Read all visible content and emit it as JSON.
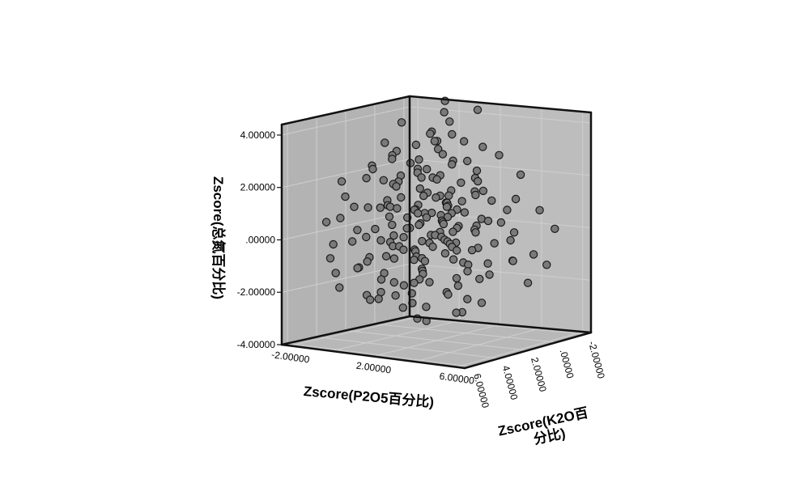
{
  "chart_data": {
    "type": "scatter",
    "subtype": "3d",
    "title": "",
    "z_axis": {
      "label": "Zscore(总氮百分比)",
      "ticks": [
        "4.00000",
        "2.00000",
        ".00000",
        "-2.00000",
        "-4.00000"
      ],
      "range": [
        -4,
        4.4
      ]
    },
    "x_axis": {
      "label": "Zscore(P2O5百分比)",
      "ticks": [
        "-2.00000",
        "2.00000",
        "6.00000"
      ],
      "range": [
        -2.4,
        6.4
      ]
    },
    "y_axis": {
      "label_lines": [
        "Zscore(K2O百",
        "分比)"
      ],
      "ticks": [
        "-2.00000",
        ".00000",
        "2.00000",
        "4.00000",
        "6.00000"
      ],
      "range": [
        -2.4,
        6.4
      ]
    },
    "grid": true,
    "legend": "none",
    "point_color": "#7a7a7a",
    "point_edge_color": "#1a1a1a",
    "wall_color": "#b3b3b3",
    "floor_color": "#b8b8b8",
    "points_zxy": [
      [
        4.6,
        0.3,
        -1.0
      ],
      [
        4.2,
        0.4,
        -0.8
      ],
      [
        3.9,
        0.8,
        -0.6
      ],
      [
        4.3,
        1.6,
        -1.4
      ],
      [
        3.8,
        -1.1,
        0.0
      ],
      [
        3.6,
        0.5,
        0.2
      ],
      [
        3.5,
        1.2,
        -0.2
      ],
      [
        3.4,
        0.0,
        -0.4
      ],
      [
        3.3,
        0.9,
        0.4
      ],
      [
        3.2,
        1.5,
        -0.6
      ],
      [
        3.0,
        -0.4,
        0.0
      ],
      [
        3.0,
        2.2,
        -0.9
      ],
      [
        2.9,
        0.6,
        -0.1
      ],
      [
        2.8,
        1.1,
        0.3
      ],
      [
        2.6,
        -1.2,
        0.5
      ],
      [
        2.6,
        0.3,
        0.8
      ],
      [
        2.5,
        1.8,
        -0.4
      ],
      [
        2.4,
        0.9,
        -0.7
      ],
      [
        2.3,
        -0.6,
        0.1
      ],
      [
        2.2,
        2.4,
        -0.2
      ],
      [
        2.2,
        0.1,
        0.6
      ],
      [
        2.1,
        1.4,
        0.9
      ],
      [
        2.0,
        -0.3,
        -0.6
      ],
      [
        2.0,
        0.7,
        1.2
      ],
      [
        1.9,
        2.8,
        0.3
      ],
      [
        1.8,
        -1.0,
        0.2
      ],
      [
        1.8,
        1.9,
        -0.8
      ],
      [
        1.7,
        0.4,
        -0.3
      ],
      [
        1.6,
        3.0,
        0.8
      ],
      [
        1.6,
        -0.8,
        1.0
      ],
      [
        1.5,
        1.2,
        1.5
      ],
      [
        1.4,
        0.0,
        0.3
      ],
      [
        1.4,
        2.5,
        -0.5
      ],
      [
        1.3,
        -1.5,
        -0.2
      ],
      [
        1.3,
        1.6,
        0.6
      ],
      [
        1.2,
        0.6,
        -1.0
      ],
      [
        1.2,
        3.4,
        0.2
      ],
      [
        1.1,
        -0.5,
        0.9
      ],
      [
        1.0,
        2.0,
        1.3
      ],
      [
        1.0,
        0.2,
        -0.8
      ],
      [
        0.9,
        -1.3,
        0.7
      ],
      [
        0.9,
        1.1,
        0.0
      ],
      [
        0.8,
        3.8,
        -0.3
      ],
      [
        0.8,
        -0.2,
        1.6
      ],
      [
        0.7,
        2.3,
        0.5
      ],
      [
        0.7,
        0.8,
        -0.5
      ],
      [
        0.6,
        -1.7,
        0.1
      ],
      [
        0.6,
        1.5,
        1.0
      ],
      [
        0.5,
        0.3,
        0.4
      ],
      [
        0.5,
        4.2,
        0.7
      ],
      [
        0.4,
        -0.9,
        -0.6
      ],
      [
        0.4,
        2.7,
        -0.1
      ],
      [
        0.3,
        1.0,
        1.8
      ],
      [
        0.3,
        -0.4,
        0.6
      ],
      [
        0.2,
        3.2,
        1.1
      ],
      [
        0.2,
        0.5,
        -0.9
      ],
      [
        0.1,
        -1.9,
        -0.3
      ],
      [
        0.1,
        1.8,
        0.2
      ],
      [
        0.0,
        0.0,
        1.2
      ],
      [
        0.0,
        2.9,
        0.6
      ],
      [
        0.0,
        -1.0,
        0.8
      ],
      [
        -0.1,
        1.3,
        -0.4
      ],
      [
        -0.1,
        4.8,
        0.9
      ],
      [
        -0.2,
        0.4,
        2.0
      ],
      [
        -0.2,
        -0.7,
        0.0
      ],
      [
        -0.3,
        2.1,
        1.4
      ],
      [
        -0.3,
        -2.1,
        0.4
      ],
      [
        -0.4,
        0.9,
        0.1
      ],
      [
        -0.4,
        3.6,
        0.3
      ],
      [
        -0.5,
        -0.1,
        -0.6
      ],
      [
        -0.5,
        1.6,
        1.7
      ],
      [
        -0.6,
        -1.4,
        1.0
      ],
      [
        -0.6,
        0.6,
        0.5
      ],
      [
        -0.7,
        2.6,
        0.0
      ],
      [
        -0.7,
        -0.3,
        1.3
      ],
      [
        -0.8,
        5.2,
        1.3
      ],
      [
        -0.8,
        1.2,
        -0.2
      ],
      [
        -0.9,
        -2.0,
        -0.5
      ],
      [
        -0.9,
        0.2,
        0.9
      ],
      [
        -1.0,
        3.0,
        1.6
      ],
      [
        -1.0,
        -0.8,
        0.3
      ],
      [
        -1.1,
        1.9,
        0.7
      ],
      [
        -1.2,
        -1.6,
        1.5
      ],
      [
        -1.2,
        0.8,
        1.1
      ],
      [
        -1.3,
        2.4,
        0.4
      ],
      [
        -1.4,
        -0.5,
        0.0
      ],
      [
        -1.5,
        1.4,
        2.1
      ],
      [
        -1.5,
        -2.2,
        0.8
      ],
      [
        -1.6,
        0.3,
        0.6
      ],
      [
        -1.7,
        3.3,
        0.9
      ],
      [
        -1.8,
        -1.1,
        1.2
      ],
      [
        -1.9,
        1.7,
        0.2
      ],
      [
        -2.0,
        -0.2,
        1.8
      ],
      [
        -2.1,
        0.6,
        0.5
      ],
      [
        -2.2,
        -1.8,
        0.4
      ],
      [
        -2.3,
        2.2,
        1.5
      ],
      [
        -2.5,
        0.1,
        1.0
      ],
      [
        -2.7,
        -0.9,
        0.7
      ],
      [
        -2.9,
        1.0,
        1.3
      ],
      [
        -3.1,
        -0.4,
        0.9
      ],
      [
        1.1,
        6.0,
        0.6
      ],
      [
        0.4,
        5.6,
        1.8
      ],
      [
        -0.6,
        5.8,
        2.2
      ],
      [
        0.9,
        4.9,
        2.6
      ],
      [
        -0.2,
        4.4,
        3.0
      ],
      [
        -1.1,
        5.1,
        2.8
      ],
      [
        0.1,
        3.9,
        3.4
      ],
      [
        -0.9,
        4.6,
        3.6
      ],
      [
        0.6,
        4.1,
        3.9
      ],
      [
        1.5,
        3.5,
        2.4
      ],
      [
        2.1,
        3.1,
        1.9
      ],
      [
        -1.6,
        3.8,
        3.1
      ],
      [
        -2.0,
        2.9,
        2.6
      ],
      [
        -1.3,
        2.7,
        4.2
      ],
      [
        -0.4,
        3.1,
        4.6
      ],
      [
        0.8,
        2.6,
        4.0
      ],
      [
        1.7,
        2.2,
        3.2
      ],
      [
        2.5,
        1.7,
        2.9
      ],
      [
        -2.4,
        1.8,
        3.4
      ],
      [
        -1.9,
        0.9,
        2.7
      ],
      [
        -0.7,
        1.2,
        3.8
      ],
      [
        0.3,
        1.6,
        4.4
      ],
      [
        1.2,
        0.8,
        3.5
      ],
      [
        2.0,
        0.5,
        2.5
      ],
      [
        2.7,
        -0.3,
        1.8
      ],
      [
        3.1,
        0.2,
        2.2
      ],
      [
        -2.6,
        -0.6,
        2.3
      ],
      [
        -1.4,
        -1.2,
        2.9
      ],
      [
        -0.1,
        -0.5,
        3.3
      ],
      [
        0.9,
        -0.9,
        2.6
      ],
      [
        1.9,
        -1.4,
        2.0
      ],
      [
        -0.5,
        -1.8,
        2.4
      ],
      [
        -1.0,
        0.2,
        4.8
      ],
      [
        0.5,
        0.4,
        5.2
      ],
      [
        -0.3,
        2.0,
        5.5
      ],
      [
        1.4,
        1.3,
        4.9
      ],
      [
        2.3,
        0.9,
        4.1
      ],
      [
        -1.8,
        1.4,
        5.0
      ],
      [
        0.0,
        -0.2,
        6.0
      ],
      [
        1.0,
        0.0,
        5.8
      ],
      [
        -1.2,
        -0.5,
        5.4
      ],
      [
        1.6,
        -0.6,
        4.6
      ],
      [
        2.6,
        0.1,
        3.7
      ],
      [
        -2.1,
        0.3,
        4.4
      ],
      [
        3.4,
        1.2,
        1.0
      ],
      [
        -3.3,
        1.5,
        2.0
      ],
      [
        -3.0,
        2.6,
        1.1
      ],
      [
        2.2,
        -1.9,
        0.9
      ],
      [
        -2.8,
        -1.5,
        1.6
      ],
      [
        0.7,
        -2.2,
        1.7
      ],
      [
        1.3,
        2.9,
        4.6
      ],
      [
        -0.8,
        3.4,
        5.0
      ],
      [
        0.2,
        2.6,
        5.9
      ],
      [
        -1.5,
        2.3,
        4.0
      ],
      [
        2.4,
        2.5,
        3.0
      ],
      [
        -0.9,
        -1.6,
        4.2
      ],
      [
        0.6,
        -1.3,
        4.9
      ],
      [
        -2.2,
        -2.0,
        3.0
      ],
      [
        1.8,
        -2.1,
        2.7
      ],
      [
        -1.0,
        6.2,
        0.4
      ],
      [
        0.2,
        5.9,
        -0.6
      ],
      [
        1.6,
        5.4,
        1.4
      ],
      [
        -1.7,
        5.5,
        0.7
      ],
      [
        2.3,
        4.8,
        0.2
      ],
      [
        -0.4,
        6.4,
        1.6
      ],
      [
        3.0,
        3.9,
        0.4
      ],
      [
        -2.4,
        4.1,
        1.9
      ],
      [
        1.9,
        4.5,
        2.9
      ],
      [
        -0.6,
        5.3,
        3.2
      ],
      [
        0.9,
        5.1,
        3.7
      ],
      [
        -1.9,
        4.8,
        3.9
      ],
      [
        2.8,
        2.8,
        2.1
      ],
      [
        -2.7,
        3.5,
        2.8
      ],
      [
        3.2,
        -1.0,
        1.3
      ],
      [
        -3.4,
        0.5,
        1.2
      ],
      [
        0.1,
        1.0,
        0.1
      ],
      [
        0.2,
        1.1,
        0.3
      ],
      [
        0.3,
        1.2,
        0.5
      ],
      [
        -0.2,
        0.9,
        0.2
      ],
      [
        -0.3,
        0.8,
        0.4
      ],
      [
        0.4,
        0.6,
        0.7
      ],
      [
        0.5,
        0.5,
        0.2
      ],
      [
        -0.4,
        1.4,
        0.6
      ],
      [
        0.6,
        1.6,
        0.4
      ],
      [
        -0.5,
        1.8,
        0.8
      ],
      [
        0.7,
        0.2,
        0.9
      ],
      [
        -0.6,
        0.1,
        0.3
      ],
      [
        0.8,
        2.0,
        0.6
      ],
      [
        -0.7,
        2.2,
        0.9
      ],
      [
        0.9,
        0.4,
        1.0
      ],
      [
        -0.8,
        0.3,
        1.1
      ],
      [
        1.0,
        1.4,
        0.5
      ],
      [
        -0.9,
        1.5,
        0.7
      ],
      [
        1.1,
        0.7,
        0.2
      ],
      [
        -1.0,
        0.6,
        1.4
      ]
    ]
  }
}
